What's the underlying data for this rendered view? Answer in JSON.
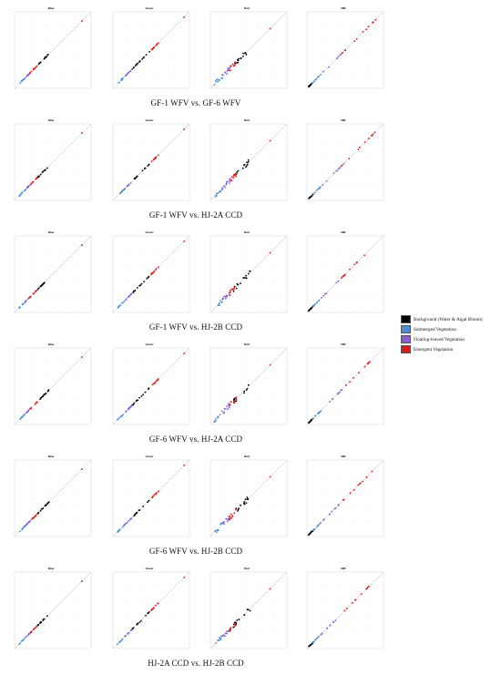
{
  "band_titles": [
    "Blue",
    "Green",
    "Red",
    "NIR"
  ],
  "rows": [
    {
      "title": "GF-1 WFV vs. GF-6 WFV"
    },
    {
      "title": "GF-1 WFV vs. HJ-2A CCD"
    },
    {
      "title": "GF-1 WFV vs. HJ-2B CCD"
    },
    {
      "title": "GF-6 WFV vs. HJ-2A CCD"
    },
    {
      "title": "GF-6 WFV vs. HJ-2B CCD"
    },
    {
      "title": "HJ-2A CCD vs. HJ-2B CCD"
    }
  ],
  "legend": [
    {
      "label": "Background (Water & Algal Bloom)",
      "color": "#000000"
    },
    {
      "label": "Submerged Vegetation",
      "color": "#4a90d9"
    },
    {
      "label": "Floating-leaved Vegetation",
      "color": "#8a5cd6"
    },
    {
      "label": "Emergent Vegetation",
      "color": "#e01818"
    }
  ],
  "chart_data": {
    "type": "scatter",
    "xlim": [
      0,
      1
    ],
    "ylim": [
      0,
      1
    ],
    "reference_line": "1:1",
    "grid": true,
    "legend_position": "right",
    "panels_per_row": [
      "Blue",
      "Green",
      "Red",
      "NIR"
    ],
    "classes": [
      "Background (Water & Algal Bloom)",
      "Submerged Vegetation",
      "Floating-leaved Vegetation",
      "Emergent Vegetation"
    ],
    "approx_class_ranges": {
      "Blue": {
        "Submerged Vegetation": [
          0.06,
          0.14
        ],
        "Floating-leaved Vegetation": [
          0.14,
          0.22
        ],
        "Emergent Vegetation": [
          0.2,
          0.3
        ],
        "Background (Water & Algal Bloom)": [
          0.3,
          0.45
        ],
        "outlier_max": 0.88
      },
      "Green": {
        "Submerged Vegetation": [
          0.05,
          0.15
        ],
        "Floating-leaved Vegetation": [
          0.15,
          0.25
        ],
        "Background (Water & Algal Bloom)": [
          0.25,
          0.48
        ],
        "Emergent Vegetation": [
          0.5,
          0.6
        ],
        "outlier_max": 0.93
      },
      "Red": {
        "Submerged Vegetation": [
          0.05,
          0.16
        ],
        "Floating-leaved Vegetation": [
          0.16,
          0.26
        ],
        "Emergent Vegetation": [
          0.24,
          0.34
        ],
        "Background (Water & Algal Bloom)": [
          0.3,
          0.52
        ],
        "outlier_max": 0.78
      },
      "NIR": {
        "Background (Water & Algal Bloom)": [
          0.02,
          0.08
        ],
        "Submerged Vegetation": [
          0.06,
          0.18
        ],
        "Floating-leaved Vegetation": [
          0.18,
          0.5
        ],
        "Emergent Vegetation": [
          0.45,
          0.9
        ]
      }
    }
  }
}
